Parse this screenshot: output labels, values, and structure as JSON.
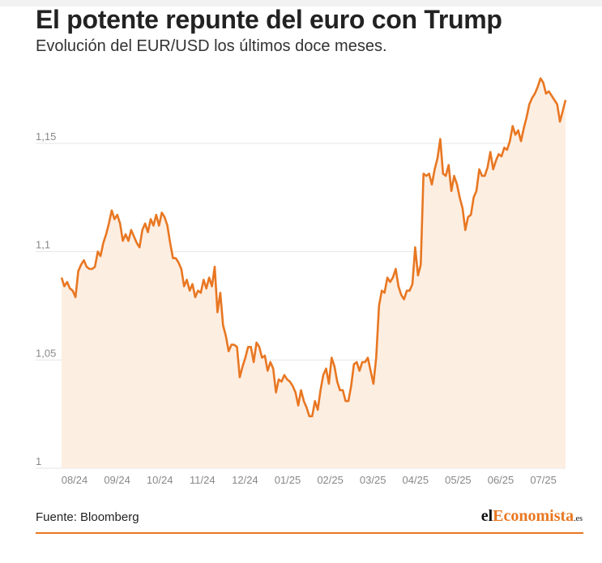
{
  "header": {
    "title": "El potente repunte del euro con Trump",
    "subtitle": "Evolución del EUR/USD los últimos doce meses."
  },
  "footer": {
    "source": "Fuente: Bloomberg",
    "brand": {
      "part1": "el",
      "part2": "Economista",
      "part3": ".es"
    }
  },
  "colors": {
    "line": "#e87722",
    "area": "#fdeee2",
    "grid": "#e6e6e6",
    "accent": "#e87722"
  },
  "chart_data": {
    "type": "area",
    "title": "El potente repunte del euro con Trump",
    "subtitle": "Evolución del EUR/USD los últimos doce meses.",
    "y_ticks": [
      {
        "value": 1.0,
        "label": "1"
      },
      {
        "value": 1.05,
        "label": "1,05"
      },
      {
        "value": 1.1,
        "label": "1,1"
      },
      {
        "value": 1.15,
        "label": "1,15"
      }
    ],
    "x_ticks": [
      "08/24",
      "09/24",
      "10/24",
      "11/24",
      "12/24",
      "01/25",
      "02/25",
      "03/25",
      "04/25",
      "05/25",
      "06/25",
      "07/25"
    ],
    "ylim": [
      1.0,
      1.19
    ],
    "grid": true,
    "series": [
      {
        "values": [
          1.088,
          1.084,
          1.086,
          1.083,
          1.082,
          1.079,
          1.091,
          1.094,
          1.096,
          1.093,
          1.092,
          1.092,
          1.093,
          1.1,
          1.098,
          1.104,
          1.108,
          1.113,
          1.119,
          1.115,
          1.117,
          1.113,
          1.105,
          1.108,
          1.105,
          1.11,
          1.107,
          1.104,
          1.102,
          1.11,
          1.113,
          1.109,
          1.115,
          1.112,
          1.117,
          1.112,
          1.118,
          1.116,
          1.112,
          1.104,
          1.097,
          1.097,
          1.095,
          1.092,
          1.084,
          1.087,
          1.082,
          1.085,
          1.079,
          1.082,
          1.081,
          1.087,
          1.083,
          1.088,
          1.084,
          1.093,
          1.072,
          1.081,
          1.066,
          1.061,
          1.054,
          1.057,
          1.057,
          1.056,
          1.042,
          1.047,
          1.051,
          1.056,
          1.056,
          1.049,
          1.058,
          1.056,
          1.051,
          1.052,
          1.045,
          1.049,
          1.046,
          1.035,
          1.041,
          1.04,
          1.043,
          1.041,
          1.04,
          1.038,
          1.035,
          1.029,
          1.036,
          1.031,
          1.028,
          1.024,
          1.024,
          1.031,
          1.027,
          1.036,
          1.043,
          1.046,
          1.039,
          1.051,
          1.047,
          1.04,
          1.036,
          1.036,
          1.031,
          1.031,
          1.038,
          1.048,
          1.049,
          1.045,
          1.049,
          1.049,
          1.051,
          1.045,
          1.039,
          1.051,
          1.075,
          1.082,
          1.081,
          1.088,
          1.086,
          1.088,
          1.092,
          1.084,
          1.08,
          1.078,
          1.082,
          1.082,
          1.085,
          1.102,
          1.089,
          1.094,
          1.136,
          1.135,
          1.136,
          1.131,
          1.138,
          1.143,
          1.152,
          1.136,
          1.135,
          1.14,
          1.128,
          1.135,
          1.131,
          1.125,
          1.12,
          1.11,
          1.116,
          1.117,
          1.125,
          1.128,
          1.138,
          1.135,
          1.135,
          1.139,
          1.146,
          1.138,
          1.142,
          1.145,
          1.144,
          1.148,
          1.147,
          1.151,
          1.158,
          1.154,
          1.156,
          1.151,
          1.157,
          1.162,
          1.168,
          1.171,
          1.173,
          1.176,
          1.18,
          1.178,
          1.173,
          1.174,
          1.172,
          1.17,
          1.168,
          1.16,
          1.165,
          1.17
        ]
      }
    ]
  }
}
